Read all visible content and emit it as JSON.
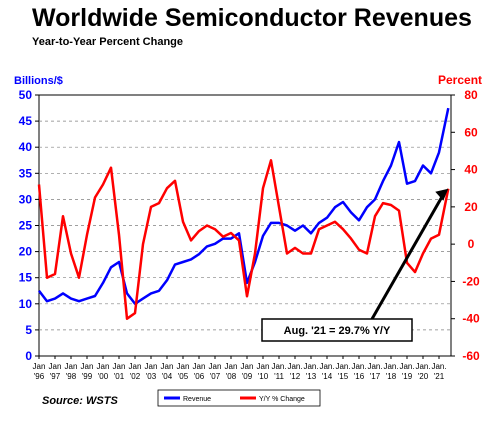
{
  "header": {
    "title": "Worldwide Semiconductor Revenues",
    "subtitle": "Year-to-Year Percent Change"
  },
  "source": "Source: WSTS",
  "chart_data": {
    "type": "line",
    "left_axis_label": "Billions/$",
    "right_axis_label": "Percent",
    "left_ylim": [
      0,
      50
    ],
    "left_ticks": [
      "0",
      "5",
      "10",
      "15",
      "20",
      "25",
      "30",
      "35",
      "40",
      "45",
      "50"
    ],
    "right_ylim": [
      -60,
      80
    ],
    "right_ticks": [
      "-60",
      "-40",
      "-20",
      "0",
      "20",
      "40",
      "60",
      "80"
    ],
    "x_range": [
      1996.0,
      2021.75
    ],
    "x_tick_labels": [
      {
        "top": "Jan",
        "bottom": "'96"
      },
      {
        "top": "Jan",
        "bottom": "'97"
      },
      {
        "top": "Jan",
        "bottom": "'98"
      },
      {
        "top": "Jan",
        "bottom": "'99"
      },
      {
        "top": "Jan",
        "bottom": "'00"
      },
      {
        "top": "Jan",
        "bottom": "'01"
      },
      {
        "top": "Jan",
        "bottom": "'02"
      },
      {
        "top": "Jan",
        "bottom": "'03"
      },
      {
        "top": "Jan",
        "bottom": "'04"
      },
      {
        "top": "Jan",
        "bottom": "'05"
      },
      {
        "top": "Jan",
        "bottom": "'06"
      },
      {
        "top": "Jan",
        "bottom": "'07"
      },
      {
        "top": "Jan",
        "bottom": "'08"
      },
      {
        "top": "Jan",
        "bottom": "'09"
      },
      {
        "top": "Jan",
        "bottom": "'10"
      },
      {
        "top": "Jan.",
        "bottom": "'11"
      },
      {
        "top": "Jan.",
        "bottom": "'12"
      },
      {
        "top": "Jan.",
        "bottom": "'13"
      },
      {
        "top": "Jan.",
        "bottom": "'14"
      },
      {
        "top": "Jan.",
        "bottom": "'15"
      },
      {
        "top": "Jan.",
        "bottom": "'16"
      },
      {
        "top": "Jan.",
        "bottom": "'17"
      },
      {
        "top": "Jan.",
        "bottom": "'18"
      },
      {
        "top": "Jan.",
        "bottom": "'19"
      },
      {
        "top": "Jan.",
        "bottom": "'20"
      },
      {
        "top": "Jan.",
        "bottom": "'21"
      }
    ],
    "grid": "horizontal, dashed",
    "legend_position": "bottom-center",
    "annotation": {
      "text": "Aug. '21 = 29.7% Y/Y",
      "x": 2021.58,
      "y_percent": 29.7
    },
    "series": [
      {
        "name": "Revenue",
        "axis": "left",
        "color": "#0000ff",
        "x": [
          1996.0,
          1996.5,
          1997.0,
          1997.5,
          1998.0,
          1998.5,
          1999.0,
          1999.5,
          2000.0,
          2000.5,
          2001.0,
          2001.5,
          2002.0,
          2002.5,
          2003.0,
          2003.5,
          2004.0,
          2004.5,
          2005.0,
          2005.5,
          2006.0,
          2006.5,
          2007.0,
          2007.5,
          2008.0,
          2008.5,
          2009.0,
          2009.5,
          2010.0,
          2010.5,
          2011.0,
          2011.5,
          2012.0,
          2012.5,
          2013.0,
          2013.5,
          2014.0,
          2014.5,
          2015.0,
          2015.5,
          2016.0,
          2016.5,
          2017.0,
          2017.5,
          2018.0,
          2018.5,
          2019.0,
          2019.5,
          2020.0,
          2020.5,
          2021.0,
          2021.58
        ],
        "values": [
          12.5,
          10.5,
          11.0,
          12.0,
          11.0,
          10.5,
          11.0,
          11.5,
          14.0,
          17.0,
          18.0,
          12.0,
          10.0,
          11.0,
          12.0,
          12.5,
          14.5,
          17.5,
          18.0,
          18.5,
          19.5,
          21.0,
          21.5,
          22.5,
          22.5,
          23.5,
          14.0,
          18.0,
          23.0,
          25.5,
          25.5,
          25.0,
          24.0,
          25.0,
          23.5,
          25.5,
          26.5,
          28.5,
          29.5,
          27.5,
          26.0,
          28.5,
          30.0,
          33.5,
          36.5,
          41.0,
          33.0,
          33.5,
          36.5,
          35.0,
          39.0,
          47.5
        ]
      },
      {
        "name": "Y/Y % Change",
        "axis": "right",
        "color": "#ff0000",
        "x": [
          1996.0,
          1996.5,
          1997.0,
          1997.5,
          1998.0,
          1998.5,
          1999.0,
          1999.5,
          2000.0,
          2000.5,
          2001.0,
          2001.5,
          2002.0,
          2002.5,
          2003.0,
          2003.5,
          2004.0,
          2004.5,
          2005.0,
          2005.5,
          2006.0,
          2006.5,
          2007.0,
          2007.5,
          2008.0,
          2008.5,
          2009.0,
          2009.5,
          2010.0,
          2010.5,
          2011.0,
          2011.5,
          2012.0,
          2012.5,
          2013.0,
          2013.5,
          2014.0,
          2014.5,
          2015.0,
          2015.5,
          2016.0,
          2016.5,
          2017.0,
          2017.5,
          2018.0,
          2018.5,
          2019.0,
          2019.5,
          2020.0,
          2020.5,
          2021.0,
          2021.58
        ],
        "values": [
          32.0,
          -18.0,
          -16.0,
          15.0,
          -5.0,
          -18.0,
          5.0,
          25.0,
          32.0,
          41.0,
          5.0,
          -40.0,
          -37.0,
          0.0,
          20.0,
          22.0,
          30.0,
          34.0,
          12.0,
          2.0,
          7.0,
          10.0,
          8.0,
          4.0,
          6.0,
          2.0,
          -28.0,
          -5.0,
          30.0,
          45.0,
          20.0,
          -5.0,
          -2.0,
          -5.0,
          -5.0,
          8.0,
          10.0,
          12.0,
          8.0,
          3.0,
          -3.0,
          -5.0,
          15.0,
          22.0,
          21.0,
          18.0,
          -10.0,
          -15.0,
          -5.0,
          3.0,
          5.0,
          29.7
        ]
      }
    ]
  }
}
